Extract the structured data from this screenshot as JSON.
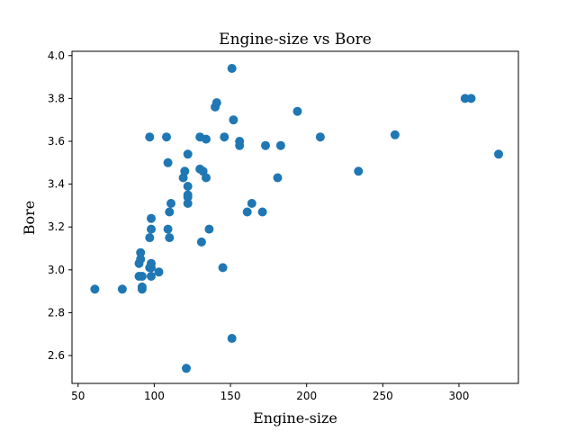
{
  "chart_data": {
    "type": "scatter",
    "title": "Engine-size vs Bore",
    "xlabel": "Engine-size",
    "ylabel": "Bore",
    "xlim": [
      46,
      339
    ],
    "ylim": [
      2.47,
      4.02
    ],
    "xticks": [
      50,
      100,
      150,
      200,
      250,
      300
    ],
    "yticks": [
      2.6,
      2.8,
      3.0,
      3.2,
      3.4,
      3.6,
      3.8,
      4.0
    ],
    "ytick_labels": [
      "2.6",
      "2.8",
      "3.0",
      "3.2",
      "3.4",
      "3.6",
      "3.8",
      "4.0"
    ],
    "grid": false,
    "marker_color": "#1f77b4",
    "points": [
      [
        61,
        2.91
      ],
      [
        79,
        2.91
      ],
      [
        90,
        2.97
      ],
      [
        90,
        3.03
      ],
      [
        91,
        3.05
      ],
      [
        91,
        3.08
      ],
      [
        92,
        2.91
      ],
      [
        92,
        2.92
      ],
      [
        92,
        2.97
      ],
      [
        97,
        3.01
      ],
      [
        97,
        3.15
      ],
      [
        97,
        3.62
      ],
      [
        98,
        3.03
      ],
      [
        98,
        3.19
      ],
      [
        98,
        3.24
      ],
      [
        98,
        2.97
      ],
      [
        98,
        3.01
      ],
      [
        103,
        2.99
      ],
      [
        108,
        3.62
      ],
      [
        109,
        3.19
      ],
      [
        109,
        3.5
      ],
      [
        110,
        3.15
      ],
      [
        110,
        3.27
      ],
      [
        111,
        3.31
      ],
      [
        119,
        3.43
      ],
      [
        120,
        3.46
      ],
      [
        121,
        2.54
      ],
      [
        122,
        3.31
      ],
      [
        122,
        3.34
      ],
      [
        122,
        3.35
      ],
      [
        122,
        3.39
      ],
      [
        122,
        3.54
      ],
      [
        130,
        3.47
      ],
      [
        130,
        3.62
      ],
      [
        131,
        3.13
      ],
      [
        132,
        3.46
      ],
      [
        134,
        3.43
      ],
      [
        134,
        3.61
      ],
      [
        136,
        3.19
      ],
      [
        140,
        3.76
      ],
      [
        141,
        3.78
      ],
      [
        145,
        3.01
      ],
      [
        146,
        3.62
      ],
      [
        151,
        3.94
      ],
      [
        151,
        2.68
      ],
      [
        152,
        3.7
      ],
      [
        156,
        3.58
      ],
      [
        156,
        3.6
      ],
      [
        161,
        3.27
      ],
      [
        164,
        3.31
      ],
      [
        171,
        3.27
      ],
      [
        173,
        3.58
      ],
      [
        181,
        3.43
      ],
      [
        183,
        3.58
      ],
      [
        194,
        3.74
      ],
      [
        209,
        3.62
      ],
      [
        234,
        3.46
      ],
      [
        258,
        3.63
      ],
      [
        304,
        3.8
      ],
      [
        308,
        3.8
      ],
      [
        326,
        3.54
      ]
    ]
  }
}
